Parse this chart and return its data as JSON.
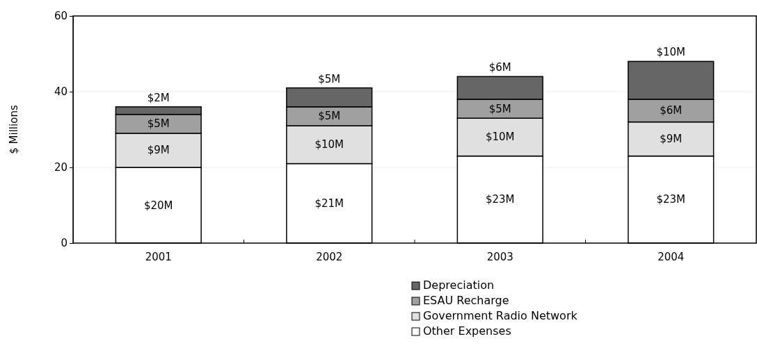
{
  "chart_data": {
    "type": "bar",
    "stacked": true,
    "ylabel": "$ Millions",
    "categories": [
      "2001",
      "2002",
      "2003",
      "2004"
    ],
    "ylim": [
      0,
      60
    ],
    "yticks": [
      0,
      20,
      40,
      60
    ],
    "grid": "y",
    "legend": "bottom",
    "series": [
      {
        "name": "Other Expenses",
        "color": "#ffffff",
        "values": [
          20,
          21,
          23,
          23
        ],
        "value_labels": [
          "$20M",
          "$21M",
          "$23M",
          "$23M"
        ]
      },
      {
        "name": "Government Radio Network",
        "color": "#e0e0e0",
        "values": [
          9,
          10,
          10,
          9
        ],
        "value_labels": [
          "$9M",
          "$10M",
          "$10M",
          "$9M"
        ]
      },
      {
        "name": "ESAU Recharge",
        "color": "#a0a0a0",
        "values": [
          5,
          5,
          5,
          6
        ],
        "value_labels": [
          "$5M",
          "$5M",
          "$5M",
          "$6M"
        ]
      },
      {
        "name": "Depreciation",
        "color": "#666666",
        "values": [
          2,
          5,
          6,
          10
        ],
        "value_labels": [
          "$2M",
          "$5M",
          "$6M",
          "$10M"
        ]
      }
    ]
  }
}
